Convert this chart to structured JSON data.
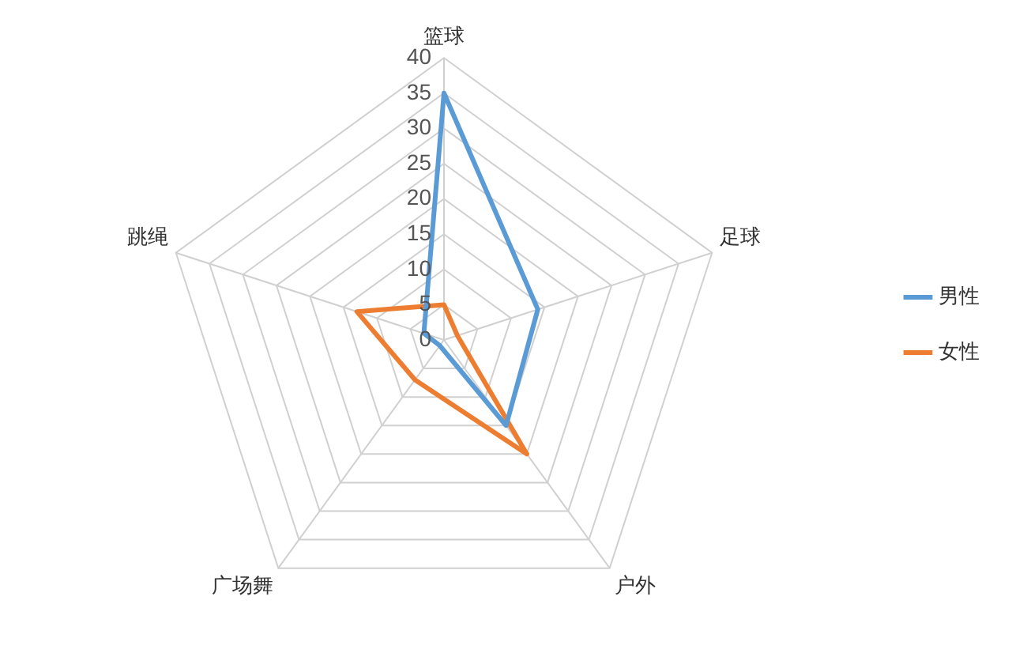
{
  "chart_data": {
    "type": "radar",
    "categories": [
      "篮球",
      "足球",
      "户外",
      "广场舞",
      "跳绳"
    ],
    "series": [
      {
        "name": "男性",
        "color": "#5b9bd5",
        "values": [
          35,
          14,
          15,
          1,
          3
        ]
      },
      {
        "name": "女性",
        "color": "#ed7d31",
        "values": [
          5,
          2,
          20,
          7,
          13
        ]
      }
    ],
    "ylim": [
      0,
      40
    ],
    "yticks": [
      0,
      5,
      10,
      15,
      20,
      25,
      30,
      35,
      40
    ],
    "grid": true,
    "legend": "right",
    "marker": "none"
  }
}
